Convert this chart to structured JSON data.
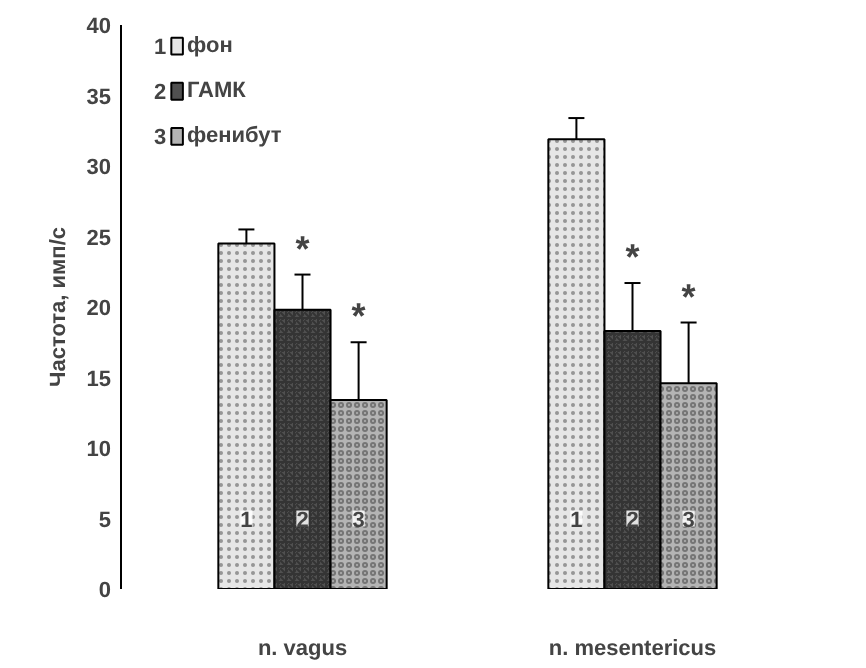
{
  "chart_data": {
    "type": "bar",
    "ylabel": "Частота, имп/с",
    "categories": [
      "n. vagus",
      "n. mesentericus"
    ],
    "series": [
      {
        "name": "фон",
        "color": "#e6e6e6",
        "values": [
          24.5,
          31.9
        ],
        "errors": [
          1,
          1.5
        ]
      },
      {
        "name": "ГАМК",
        "color": "#505050",
        "values": [
          19.8,
          18.3
        ],
        "errors": [
          2.5,
          3.4
        ]
      },
      {
        "name": "фенибут",
        "color": "#b4b4b4",
        "values": [
          13.4,
          14.6
        ],
        "errors": [
          4.1,
          4.3
        ]
      }
    ],
    "ylim": [
      0,
      40
    ],
    "yticks": [
      0,
      5,
      10,
      15,
      20,
      25,
      30,
      35,
      40
    ],
    "grid": false,
    "legend": "top left",
    "annotations": [
      "1",
      "2",
      "3",
      "1",
      "2",
      "3",
      "*",
      "*",
      "*",
      "*"
    ]
  }
}
